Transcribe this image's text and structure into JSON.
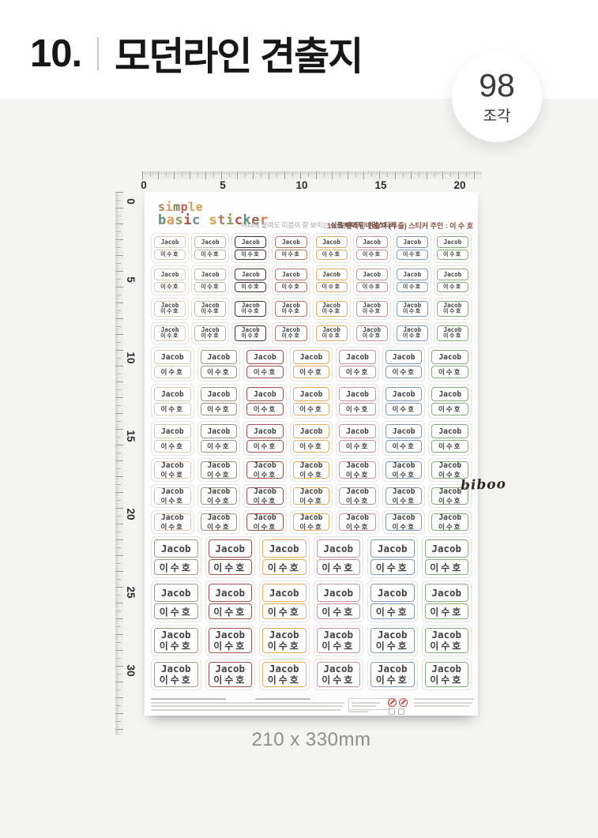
{
  "page": {
    "title_number": "10.",
    "title": "모던라인 견출지",
    "badge": {
      "count": "98",
      "unit": "조각"
    },
    "dimensions": "210 x 330mm"
  },
  "rulers": {
    "top_labels": [
      "0",
      "5",
      "10",
      "15",
      "20"
    ],
    "left_labels": [
      "0",
      "5",
      "10",
      "15",
      "20",
      "25",
      "30"
    ]
  },
  "sheet": {
    "logo_line1": "simple",
    "logo_line2": "basic sticker",
    "logo_colors_line1": [
      "#b0805a",
      "#e09a52",
      "#74804e",
      "#bf5f52",
      "#e09a52",
      "#cfa24a"
    ],
    "logo_colors_line2": [
      "#5f8f7d",
      "#e09a52",
      "#8a9a5b",
      "#b05048",
      "#6f8ba6",
      "",
      "#cfa24a",
      "#b0805a",
      "#8a9a5b",
      "#b05048",
      "#5f8f7d",
      "#9a6a4e",
      "#e07a52"
    ],
    "tagline_normal": "어디에 붙여도 이름이 잘 보이는 ",
    "tagline_bold": "심플 베이직 네임스티커",
    "header_right": "10. 모던라인 견출지 (두줄)   스티커 주인 : 이 수 호",
    "sticker_name_en": "Jacob",
    "sticker_name_ko": "이수호",
    "watermark": "biboo",
    "sections": [
      {
        "columns": 8,
        "colors": [
          "#d8cbb4",
          "#b7bbab",
          "#4b3431",
          "#b1786c",
          "#e3ab67",
          "#c8929b",
          "#8199b4",
          "#86ab7e"
        ],
        "rows": [
          "split",
          "split",
          "combined",
          "combined"
        ]
      },
      {
        "columns": 7,
        "colors": [
          "#d8cbb4",
          "#9b9287",
          "#a5534e",
          "#e3ab67",
          "#c8929b",
          "#8199b4",
          "#86ab7e"
        ],
        "rows": [
          "split",
          "split",
          "split",
          "combined",
          "combined",
          "combined"
        ]
      },
      {
        "columns": 6,
        "colors": [
          "#a39884",
          "#a5534e",
          "#e3ab67",
          "#c8929b",
          "#8199b4",
          "#86ab7e"
        ],
        "rows": [
          "split",
          "split",
          "combined",
          "combined"
        ]
      }
    ]
  }
}
